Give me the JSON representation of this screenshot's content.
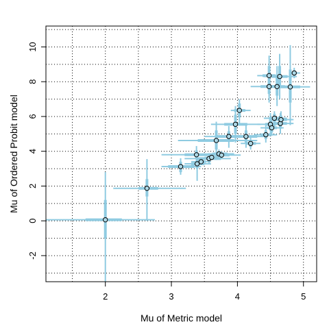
{
  "chart_data": {
    "type": "scatter",
    "title": "",
    "xlabel": "Mu of Metric model",
    "ylabel": "Mu of Ordered Probit model",
    "xlim": [
      1.1,
      5.2
    ],
    "ylim": [
      -3.5,
      11.2
    ],
    "xticks": [
      2,
      3,
      4,
      5
    ],
    "yticks": [
      -2,
      0,
      2,
      4,
      6,
      8,
      10
    ],
    "xtick_labels": [
      "2",
      "3",
      "4",
      "5"
    ],
    "ytick_labels": [
      "-2",
      "0",
      "2",
      "4",
      "6",
      "8",
      "10"
    ],
    "grid": true,
    "grid_style": "dotted",
    "error_bar_color": "#8fcbe1",
    "point_fill": "#add8e6",
    "point_edge": "#000000",
    "points": [
      {
        "x": 2.0,
        "y": 0.06,
        "x_int": [
          0.8,
          2.75
        ],
        "y_int": [
          -3.5,
          2.8
        ],
        "thick_x": [
          1.7,
          2.25
        ],
        "thick_y": [
          -1.0,
          1.2
        ]
      },
      {
        "x": 2.63,
        "y": 1.87,
        "x_int": [
          2.12,
          3.22
        ],
        "y_int": [
          0.0,
          3.55
        ],
        "thick_x": [
          2.5,
          2.8
        ],
        "thick_y": [
          1.4,
          2.4
        ]
      },
      {
        "x": 3.14,
        "y": 3.12,
        "x_int": [
          2.85,
          3.45
        ],
        "y_int": [
          2.65,
          3.6
        ],
        "thick_x": [
          2.95,
          3.35
        ],
        "thick_y": [
          2.8,
          3.4
        ]
      },
      {
        "x": 3.38,
        "y": 3.8,
        "x_int": [
          2.85,
          3.75
        ],
        "y_int": [
          3.3,
          4.3
        ],
        "thick_x": [
          3.2,
          3.55
        ],
        "thick_y": [
          3.55,
          4.05
        ]
      },
      {
        "x": 3.39,
        "y": 3.28,
        "x_int": [
          3.2,
          3.6
        ],
        "y_int": [
          2.3,
          3.95
        ],
        "thick_x": [
          3.3,
          3.5
        ],
        "thick_y": [
          3.0,
          3.55
        ]
      },
      {
        "x": 3.45,
        "y": 3.4,
        "x_int": [
          3.3,
          3.6
        ],
        "y_int": [
          3.2,
          3.6
        ],
        "thick_x": [
          3.38,
          3.52
        ],
        "thick_y": [
          3.3,
          3.5
        ]
      },
      {
        "x": 3.57,
        "y": 3.58,
        "x_int": [
          3.2,
          3.9
        ],
        "y_int": [
          3.3,
          3.85
        ],
        "thick_x": [
          3.4,
          3.75
        ],
        "thick_y": [
          3.45,
          3.72
        ]
      },
      {
        "x": 3.61,
        "y": 3.65,
        "x_int": [
          3.5,
          3.72
        ],
        "y_int": [
          3.5,
          3.8
        ],
        "thick_x": [
          3.55,
          3.67
        ],
        "thick_y": [
          3.58,
          3.72
        ]
      },
      {
        "x": 3.68,
        "y": 4.62,
        "x_int": [
          3.1,
          4.3
        ],
        "y_int": [
          3.5,
          5.7
        ],
        "thick_x": [
          3.4,
          3.95
        ],
        "thick_y": [
          4.1,
          5.2
        ]
      },
      {
        "x": 3.72,
        "y": 3.85,
        "x_int": [
          3.55,
          3.95
        ],
        "y_int": [
          3.6,
          4.1
        ],
        "thick_x": [
          3.62,
          3.85
        ],
        "thick_y": [
          3.72,
          3.98
        ]
      },
      {
        "x": 3.76,
        "y": 3.78,
        "x_int": [
          3.6,
          4.05
        ],
        "y_int": [
          3.55,
          4.0
        ],
        "thick_x": [
          3.68,
          3.88
        ],
        "thick_y": [
          3.68,
          3.9
        ]
      },
      {
        "x": 3.87,
        "y": 4.85,
        "x_int": [
          3.5,
          4.3
        ],
        "y_int": [
          4.2,
          5.45
        ],
        "thick_x": [
          3.7,
          4.05
        ],
        "thick_y": [
          4.55,
          5.15
        ]
      },
      {
        "x": 3.97,
        "y": 5.55,
        "x_int": [
          3.6,
          4.35
        ],
        "y_int": [
          4.5,
          6.6
        ],
        "thick_x": [
          3.8,
          4.15
        ],
        "thick_y": [
          5.0,
          6.1
        ]
      },
      {
        "x": 4.03,
        "y": 6.35,
        "x_int": [
          3.9,
          4.2
        ],
        "y_int": [
          5.6,
          7.0
        ],
        "thick_x": [
          3.95,
          4.12
        ],
        "thick_y": [
          5.95,
          6.75
        ]
      },
      {
        "x": 4.13,
        "y": 4.85,
        "x_int": [
          3.8,
          4.45
        ],
        "y_int": [
          4.2,
          5.55
        ],
        "thick_x": [
          3.95,
          4.3
        ],
        "thick_y": [
          4.5,
          5.2
        ]
      },
      {
        "x": 4.2,
        "y": 4.45,
        "x_int": [
          4.05,
          4.35
        ],
        "y_int": [
          4.1,
          4.8
        ],
        "thick_x": [
          4.12,
          4.28
        ],
        "thick_y": [
          4.25,
          4.65
        ]
      },
      {
        "x": 4.43,
        "y": 4.95,
        "x_int": [
          4.25,
          4.6
        ],
        "y_int": [
          4.5,
          5.5
        ],
        "thick_x": [
          4.35,
          4.52
        ],
        "thick_y": [
          4.7,
          5.2
        ]
      },
      {
        "x": 4.48,
        "y": 8.35,
        "x_int": [
          4.3,
          4.65
        ],
        "y_int": [
          7.2,
          9.5
        ],
        "thick_x": [
          4.38,
          4.58
        ],
        "thick_y": [
          7.8,
          8.9
        ]
      },
      {
        "x": 4.48,
        "y": 7.72,
        "x_int": [
          4.2,
          4.8
        ],
        "y_int": [
          6.8,
          8.6
        ],
        "thick_x": [
          4.35,
          4.62
        ],
        "thick_y": [
          7.3,
          8.15
        ]
      },
      {
        "x": 4.5,
        "y": 5.55,
        "x_int": [
          4.3,
          4.65
        ],
        "y_int": [
          4.9,
          6.2
        ],
        "thick_x": [
          4.42,
          4.58
        ],
        "thick_y": [
          5.2,
          5.9
        ]
      },
      {
        "x": 4.52,
        "y": 5.35,
        "x_int": [
          4.35,
          4.7
        ],
        "y_int": [
          4.9,
          5.8
        ],
        "thick_x": [
          4.45,
          4.6
        ],
        "thick_y": [
          5.1,
          5.6
        ]
      },
      {
        "x": 4.56,
        "y": 5.9,
        "x_int": [
          4.4,
          4.75
        ],
        "y_int": [
          5.4,
          6.3
        ],
        "thick_x": [
          4.48,
          4.65
        ],
        "thick_y": [
          5.65,
          6.15
        ]
      },
      {
        "x": 4.6,
        "y": 7.72,
        "x_int": [
          4.35,
          4.85
        ],
        "y_int": [
          6.6,
          8.9
        ],
        "thick_x": [
          4.5,
          4.72
        ],
        "thick_y": [
          7.2,
          8.3
        ]
      },
      {
        "x": 4.64,
        "y": 8.3,
        "x_int": [
          4.4,
          4.9
        ],
        "y_int": [
          7.0,
          9.6
        ],
        "thick_x": [
          4.52,
          4.76
        ],
        "thick_y": [
          7.7,
          8.9
        ]
      },
      {
        "x": 4.65,
        "y": 5.6,
        "x_int": [
          4.45,
          4.85
        ],
        "y_int": [
          5.0,
          6.2
        ],
        "thick_x": [
          4.55,
          4.75
        ],
        "thick_y": [
          5.3,
          5.9
        ]
      },
      {
        "x": 4.66,
        "y": 5.82,
        "x_int": [
          4.5,
          4.85
        ],
        "y_int": [
          5.3,
          6.3
        ],
        "thick_x": [
          4.58,
          4.75
        ],
        "thick_y": [
          5.55,
          6.05
        ]
      },
      {
        "x": 4.8,
        "y": 7.7,
        "x_int": [
          4.5,
          5.1
        ],
        "y_int": [
          5.5,
          10.1
        ],
        "thick_x": [
          4.65,
          4.95
        ],
        "thick_y": [
          6.8,
          8.7
        ]
      },
      {
        "x": 4.86,
        "y": 8.5,
        "x_int": [
          4.78,
          4.95
        ],
        "y_int": [
          8.2,
          8.8
        ],
        "thick_x": [
          4.82,
          4.9
        ],
        "thick_y": [
          8.35,
          8.65
        ]
      }
    ]
  }
}
